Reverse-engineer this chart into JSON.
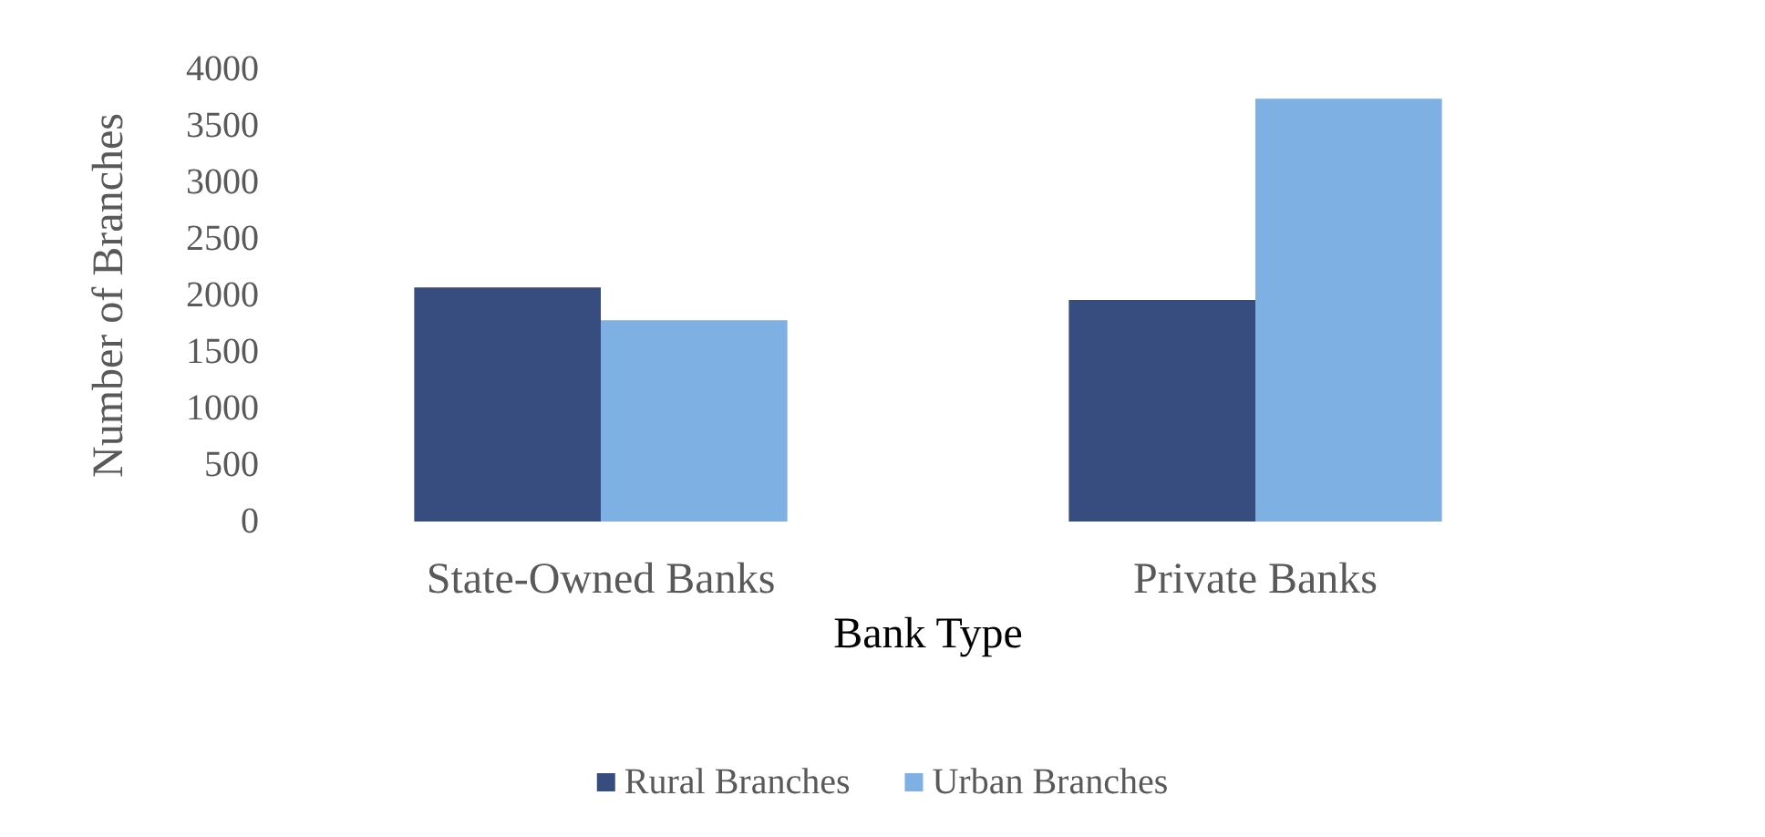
{
  "chart_data": {
    "type": "bar",
    "xlabel": "Bank Type",
    "ylabel": "Number of Branches",
    "categories": [
      "State-Owned Banks",
      "Private Banks"
    ],
    "series": [
      {
        "name": "Rural Branches",
        "color": "#374d7f",
        "values": [
          2070,
          1960
        ]
      },
      {
        "name": "Urban Branches",
        "color": "#7fb0e4",
        "values": [
          1780,
          3740
        ]
      }
    ],
    "ylim": [
      0,
      4000
    ],
    "yticks": [
      0,
      500,
      1000,
      1500,
      2000,
      2500,
      3000,
      3500,
      4000
    ],
    "grid": false,
    "legend": "bottom"
  }
}
